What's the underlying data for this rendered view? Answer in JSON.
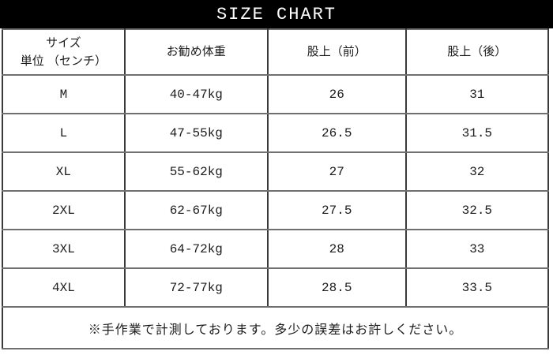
{
  "title": "SIZE CHART",
  "colors": {
    "title_bg": "#000000",
    "title_fg": "#ffffff",
    "border_outer": "#262626",
    "border_row": "#6f6f6f",
    "border_col": "#3a3a3a",
    "text": "#1c1c1c",
    "background": "#ffffff"
  },
  "table": {
    "header": {
      "col1_line1": "サイズ",
      "col1_line2": "単位 （センチ）",
      "col2": "お勧め体重",
      "col3": "股上（前）",
      "col4": "股上（後）"
    }
  },
  "chart_data": {
    "type": "table",
    "title": "SIZE CHART",
    "columns": [
      "サイズ 単位（センチ）",
      "お勧め体重",
      "股上（前）",
      "股上（後）"
    ],
    "rows": [
      [
        "M",
        "40-47kg",
        "26",
        "31"
      ],
      [
        "L",
        "47-55kg",
        "26.5",
        "31.5"
      ],
      [
        "XL",
        "55-62kg",
        "27",
        "32"
      ],
      [
        "2XL",
        "62-67kg",
        "27.5",
        "32.5"
      ],
      [
        "3XL",
        "64-72kg",
        "28",
        "33"
      ],
      [
        "4XL",
        "72-77kg",
        "28.5",
        "33.5"
      ]
    ],
    "footnote": "※手作業で計測しております。多少の誤差はお許しください。"
  }
}
